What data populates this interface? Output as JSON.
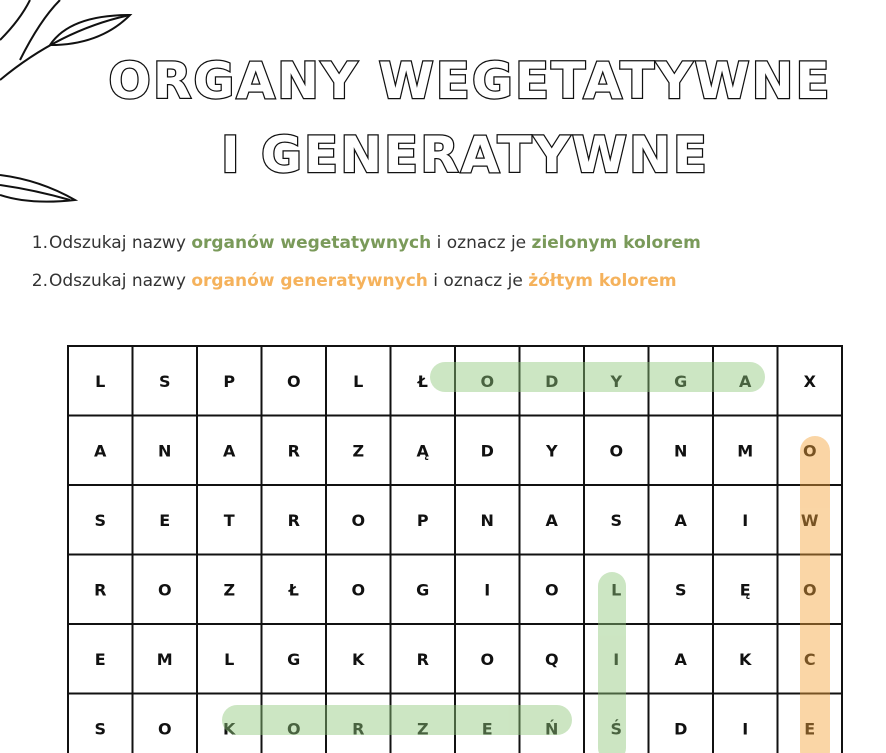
{
  "title": {
    "lines": [
      "ORGANY WEGETATYWNE",
      "I GENERATYWNE"
    ]
  },
  "instructions": [
    {
      "number": "1.",
      "parts": [
        "Odszukaj nazwy ",
        "organów wegetatywnych",
        " i oznacz je ",
        "zielonym kolorem"
      ]
    },
    {
      "number": "2.",
      "parts": [
        "Odszukaj nazwy ",
        "organów generatywnych",
        " i oznacz je ",
        "żółtym kolorem"
      ]
    }
  ],
  "grid": {
    "rows": [
      [
        "L",
        "S",
        "P",
        "O",
        "L",
        "Ł",
        "O",
        "D",
        "Y",
        "G",
        "A",
        "X"
      ],
      [
        "A",
        "N",
        "A",
        "R",
        "Z",
        "Ą",
        "D",
        "Y",
        "O",
        "N",
        "M",
        "O"
      ],
      [
        "S",
        "E",
        "T",
        "R",
        "O",
        "P",
        "N",
        "A",
        "S",
        "A",
        "I",
        "W"
      ],
      [
        "R",
        "O",
        "Z",
        "Ł",
        "O",
        "G",
        "I",
        "O",
        "L",
        "S",
        "Ę",
        "O"
      ],
      [
        "E",
        "M",
        "L",
        "G",
        "K",
        "R",
        "O",
        "Q",
        "I",
        "A",
        "K",
        "C"
      ],
      [
        "S",
        "O",
        "K",
        "O",
        "R",
        "Z",
        "E",
        "Ń",
        "Ś",
        "D",
        "I",
        "E"
      ]
    ]
  }
}
